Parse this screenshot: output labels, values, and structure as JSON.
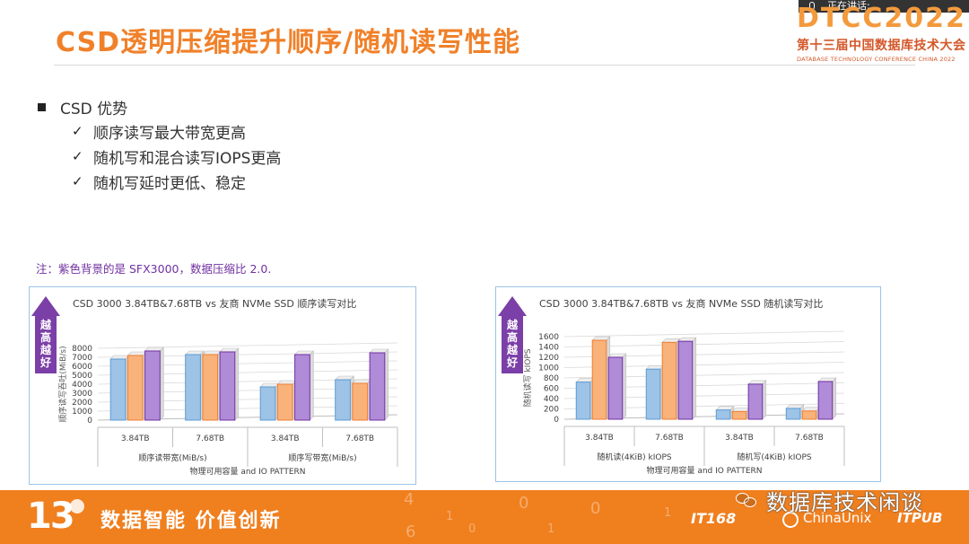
{
  "slide": {
    "title": "CSD透明压缩提升顺序/随机读写性能",
    "speaking": "正在讲话:",
    "logo": {
      "year": "DTCC2022",
      "cn": "第十三届中国数据库技术大会",
      "en": "DATABASE TECHNOLOGY CONFERENCE CHINA 2022"
    }
  },
  "bullets": {
    "main": "CSD 优势",
    "check_glyph": "✓",
    "items": [
      "顺序读写最大带宽更高",
      "随机写和混合读写IOPS更高",
      "随机写延时更低、稳定"
    ]
  },
  "note": "注：紫色背景的是 SFX3000，数据压缩比 2.0.",
  "arrow_label": "越高越好",
  "colors": {
    "blue": "#9dc3e6",
    "blue_edge": "#5b9bd5",
    "orange": "#f9b27a",
    "orange_edge": "#ed7d31",
    "purple": "#b08bd8",
    "purple_edge": "#7030a0",
    "arrow": "#7b3fa8",
    "footer": "#f07f1e"
  },
  "chart_data": [
    {
      "type": "bar",
      "title": "CSD 3000 3.84TB&7.68TB vs 友商 NVMe SSD 顺序读写对比",
      "ylabel": "顺序读写吞吐(MiB/s)",
      "xlabel": "物理可用容量 and IO PATTERN",
      "ylim": [
        0,
        8000
      ],
      "yticks": [
        0,
        1000,
        2000,
        3000,
        4000,
        5000,
        6000,
        7000,
        8000
      ],
      "categories": [
        "3.84TB",
        "7.68TB",
        "3.84TB",
        "7.68TB"
      ],
      "groups": [
        "顺序读带宽(MiB/s)",
        "顺序写带宽(MiB/s)"
      ],
      "series": [
        {
          "color": "blue",
          "values": [
            6800,
            7300,
            3700,
            4500
          ]
        },
        {
          "color": "orange",
          "values": [
            7200,
            7300,
            4000,
            4100
          ]
        },
        {
          "color": "purple",
          "values": [
            7700,
            7600,
            7300,
            7500
          ]
        }
      ],
      "grid": true
    },
    {
      "type": "bar",
      "title": "CSD 3000 3.84TB&7.68TB vs 友商 NVMe SSD 随机读写对比",
      "ylabel": "随机读写 kIOPS",
      "xlabel": "物理可用容量 and IO PATTERN",
      "ylim": [
        0,
        1600
      ],
      "yticks": [
        0,
        200,
        400,
        600,
        800,
        1000,
        1200,
        1400,
        1600
      ],
      "categories": [
        "3.84TB",
        "7.68TB",
        "3.84TB",
        "7.68TB"
      ],
      "groups": [
        "随机读(4KiB) kIOPS",
        "随机写(4KiB) kIOPS"
      ],
      "series": [
        {
          "color": "blue",
          "values": [
            720,
            970,
            180,
            210
          ]
        },
        {
          "color": "orange",
          "values": [
            1530,
            1490,
            150,
            160
          ]
        },
        {
          "color": "purple",
          "values": [
            1200,
            1510,
            680,
            730
          ]
        }
      ],
      "grid": true
    }
  ],
  "footer": {
    "badge": "13",
    "slogan": "数据智能  价值创新",
    "sponsors": [
      "IT168",
      "ChinaUnix",
      "ITPUB"
    ],
    "deco_digits": [
      "4",
      "0",
      "1",
      "0",
      "1",
      "0",
      "6",
      "1"
    ]
  },
  "watermark": "数据库技术闲谈"
}
